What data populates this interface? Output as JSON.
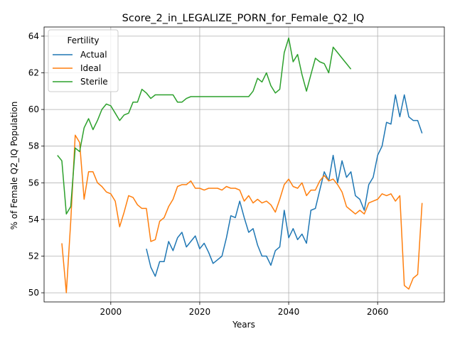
{
  "chart_data": {
    "type": "line",
    "title": "Score_2_in_LEGALIZE_PORN_for_Female_Q2_IQ",
    "xlabel": "Years",
    "ylabel": "% of Female Q2_IQ Population",
    "xlim": [
      1985,
      2075
    ],
    "ylim": [
      49.5,
      64.5
    ],
    "xticks": [
      2000,
      2020,
      2040,
      2060
    ],
    "yticks": [
      50,
      52,
      54,
      56,
      58,
      60,
      62,
      64
    ],
    "grid": true,
    "legend": {
      "title": "Fertility",
      "placement": "top-left"
    },
    "series": [
      {
        "name": "Actual",
        "color": "#1f77b4",
        "x": [
          2008,
          2009,
          2010,
          2011,
          2012,
          2013,
          2014,
          2015,
          2016,
          2017,
          2018,
          2019,
          2020,
          2021,
          2022,
          2023,
          2024,
          2025,
          2026,
          2027,
          2028,
          2029,
          2030,
          2031,
          2032,
          2033,
          2034,
          2035,
          2036,
          2037,
          2038,
          2039,
          2040,
          2041,
          2042,
          2043,
          2044,
          2045,
          2046,
          2047,
          2048,
          2049,
          2050,
          2051,
          2052,
          2053,
          2054,
          2055,
          2056,
          2057,
          2058,
          2059,
          2060,
          2061,
          2062,
          2063,
          2064,
          2065,
          2066,
          2067,
          2068,
          2069,
          2070
        ],
        "values": [
          52.4,
          51.4,
          50.9,
          51.7,
          51.7,
          52.8,
          52.3,
          53.0,
          53.3,
          52.5,
          52.8,
          53.1,
          52.4,
          52.7,
          52.2,
          51.6,
          51.8,
          52.0,
          53.0,
          54.2,
          54.1,
          55.0,
          54.1,
          53.3,
          53.5,
          52.6,
          52.0,
          52.0,
          51.5,
          52.3,
          52.5,
          54.5,
          53.0,
          53.5,
          52.9,
          53.2,
          52.7,
          54.5,
          54.6,
          55.6,
          56.6,
          56.1,
          57.5,
          56.0,
          57.2,
          56.3,
          56.6,
          55.3,
          55.1,
          54.5,
          55.9,
          56.3,
          57.5,
          58.0,
          59.3,
          59.2,
          60.8,
          59.6,
          60.8,
          59.6,
          59.4,
          59.4,
          58.7
        ]
      },
      {
        "name": "Ideal",
        "color": "#ff7f0e",
        "x": [
          1989,
          1990,
          1991,
          1992,
          1993,
          1994,
          1995,
          1996,
          1997,
          1998,
          1999,
          2000,
          2001,
          2002,
          2003,
          2004,
          2005,
          2006,
          2007,
          2008,
          2009,
          2010,
          2011,
          2012,
          2013,
          2014,
          2015,
          2016,
          2017,
          2018,
          2019,
          2020,
          2021,
          2022,
          2023,
          2024,
          2025,
          2026,
          2027,
          2028,
          2029,
          2030,
          2031,
          2032,
          2033,
          2034,
          2035,
          2036,
          2037,
          2038,
          2039,
          2040,
          2041,
          2042,
          2043,
          2044,
          2045,
          2046,
          2047,
          2048,
          2049,
          2050,
          2051,
          2052,
          2053,
          2054,
          2055,
          2056,
          2057,
          2058,
          2059,
          2060,
          2061,
          2062,
          2063,
          2064,
          2065,
          2066,
          2067,
          2068,
          2069,
          2070
        ],
        "values": [
          52.7,
          50.0,
          53.9,
          58.6,
          58.2,
          55.1,
          56.6,
          56.6,
          56.0,
          55.8,
          55.5,
          55.4,
          55.0,
          53.6,
          54.4,
          55.3,
          55.2,
          54.8,
          54.6,
          54.6,
          52.8,
          52.9,
          53.9,
          54.1,
          54.7,
          55.1,
          55.8,
          55.9,
          55.9,
          56.1,
          55.7,
          55.7,
          55.6,
          55.7,
          55.7,
          55.7,
          55.6,
          55.8,
          55.7,
          55.7,
          55.6,
          55.0,
          55.3,
          54.9,
          55.1,
          54.9,
          55.0,
          54.8,
          54.4,
          55.1,
          55.9,
          56.2,
          55.8,
          55.7,
          56.0,
          55.3,
          55.6,
          55.6,
          56.1,
          56.4,
          56.1,
          56.2,
          55.9,
          55.5,
          54.7,
          54.5,
          54.3,
          54.5,
          54.3,
          54.9,
          55.0,
          55.1,
          55.4,
          55.3,
          55.4,
          55.0,
          55.3,
          50.4,
          50.2,
          50.8,
          51.0,
          54.9
        ]
      },
      {
        "name": "Sterile",
        "color": "#2ca02c",
        "x": [
          1988,
          1989,
          1990,
          1991,
          1992,
          1993,
          1994,
          1995,
          1996,
          1997,
          1998,
          1999,
          2000,
          2001,
          2002,
          2003,
          2004,
          2005,
          2006,
          2007,
          2008,
          2009,
          2010,
          2011,
          2012,
          2013,
          2014,
          2015,
          2016,
          2017,
          2018,
          2019,
          2020,
          2021,
          2022,
          2023,
          2024,
          2025,
          2026,
          2027,
          2028,
          2029,
          2030,
          2031,
          2032,
          2033,
          2034,
          2035,
          2036,
          2037,
          2038,
          2039,
          2040,
          2041,
          2042,
          2043,
          2044,
          2045,
          2046,
          2047,
          2048,
          2049,
          2050,
          2051,
          2052,
          2053,
          2054
        ],
        "values": [
          57.5,
          57.2,
          54.3,
          54.7,
          57.9,
          57.7,
          59.0,
          59.5,
          58.9,
          59.4,
          60.0,
          60.3,
          60.2,
          59.8,
          59.4,
          59.7,
          59.8,
          60.4,
          60.4,
          61.1,
          60.9,
          60.6,
          60.8,
          60.8,
          60.8,
          60.8,
          60.8,
          60.4,
          60.4,
          60.6,
          60.7,
          60.7,
          60.7,
          60.7,
          60.7,
          60.7,
          60.7,
          60.7,
          60.7,
          60.7,
          60.7,
          60.7,
          60.7,
          60.7,
          61.0,
          61.7,
          61.5,
          62.0,
          61.3,
          60.9,
          61.1,
          63.1,
          63.9,
          62.6,
          63.0,
          61.9,
          61.0,
          61.9,
          62.8,
          62.6,
          62.5,
          62.0,
          63.4,
          63.1,
          62.8,
          62.5,
          62.2
        ]
      }
    ]
  }
}
